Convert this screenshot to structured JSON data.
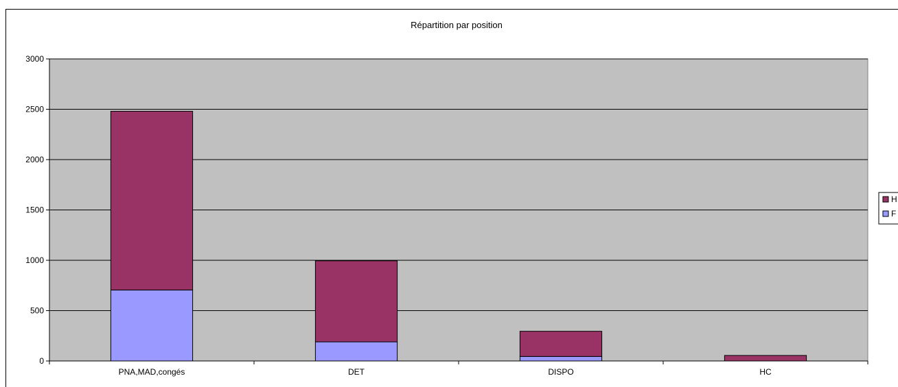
{
  "chart_data": {
    "type": "bar",
    "stacked": true,
    "title": "Répartition par position",
    "xlabel": "",
    "ylabel": "",
    "categories": [
      "PNA,MAD,congés",
      "DET",
      "DISPO",
      "HC"
    ],
    "series": [
      {
        "name": "F",
        "color": "#9999ff",
        "values": [
          705,
          190,
          45,
          0
        ]
      },
      {
        "name": "H",
        "color": "#993366",
        "values": [
          1775,
          805,
          250,
          55
        ]
      }
    ],
    "ylim": [
      0,
      3000
    ],
    "yticks": [
      "0",
      "500",
      "1000",
      "1500",
      "2000",
      "2500",
      "3000"
    ],
    "grid": true,
    "plot_background": "#c0c0c0",
    "legend_position": "right"
  }
}
